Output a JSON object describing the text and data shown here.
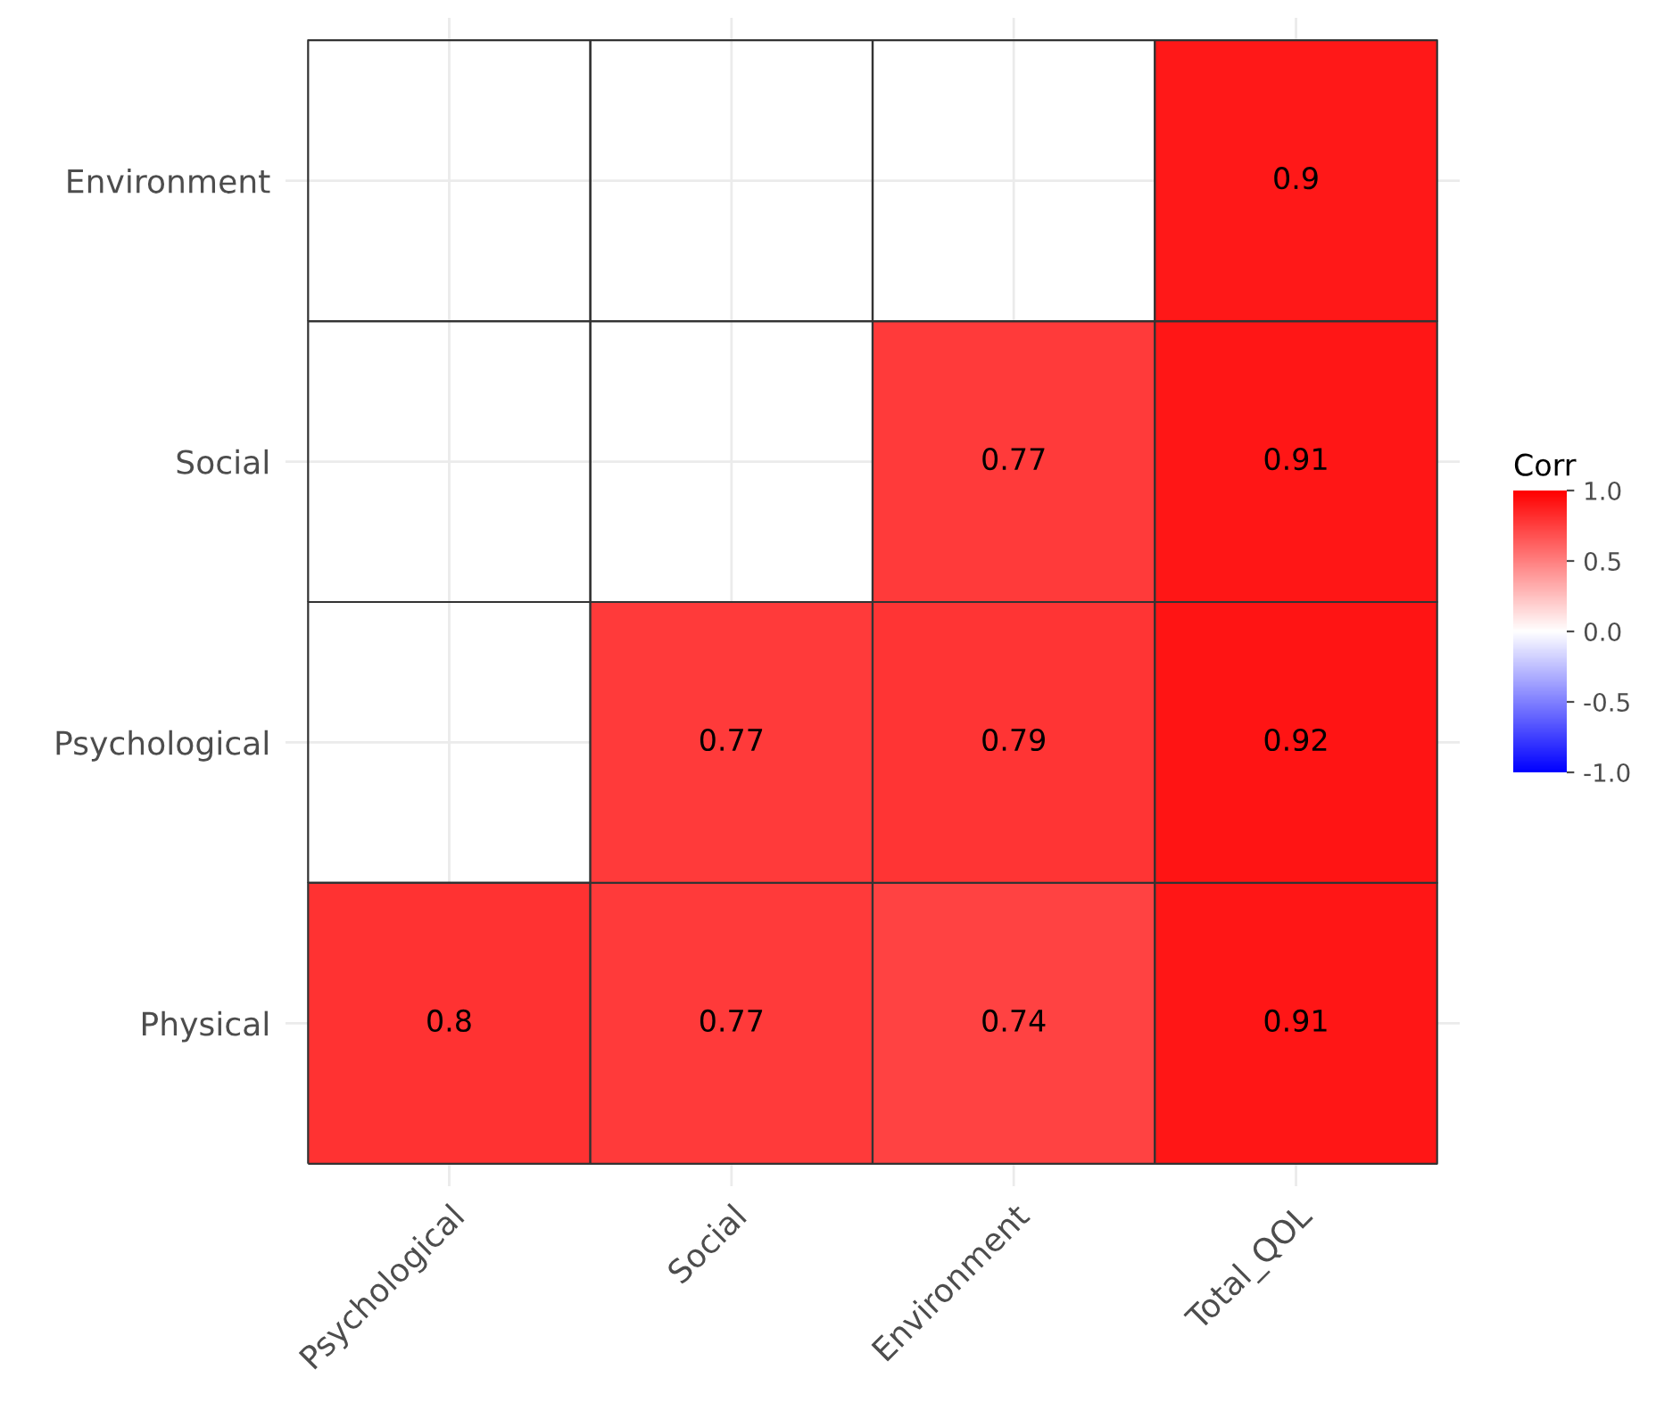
{
  "chart_data": {
    "type": "heatmap",
    "clabel": "Corr",
    "categories": [
      "Psychological",
      "Social",
      "Environment",
      "Total_QOL"
    ],
    "y_categories": [
      "Environment",
      "Social",
      "Psychological",
      "Physical"
    ],
    "cells": [
      [
        null,
        null,
        null,
        0.9
      ],
      [
        null,
        null,
        0.77,
        0.91
      ],
      [
        null,
        0.77,
        0.79,
        0.92
      ],
      [
        0.8,
        0.77,
        0.74,
        0.91
      ]
    ],
    "clim": [
      -1,
      1
    ],
    "cticks": [
      {
        "value": -1,
        "label": "-1.0"
      },
      {
        "value": -0.5,
        "label": "-0.5"
      },
      {
        "value": 0,
        "label": "0.0"
      },
      {
        "value": 0.5,
        "label": "0.5"
      },
      {
        "value": 1,
        "label": "1.0"
      }
    ],
    "colors": [
      "#0000ff",
      "#ffffff",
      "#ff0000"
    ],
    "data_labels": true,
    "grid": true
  }
}
